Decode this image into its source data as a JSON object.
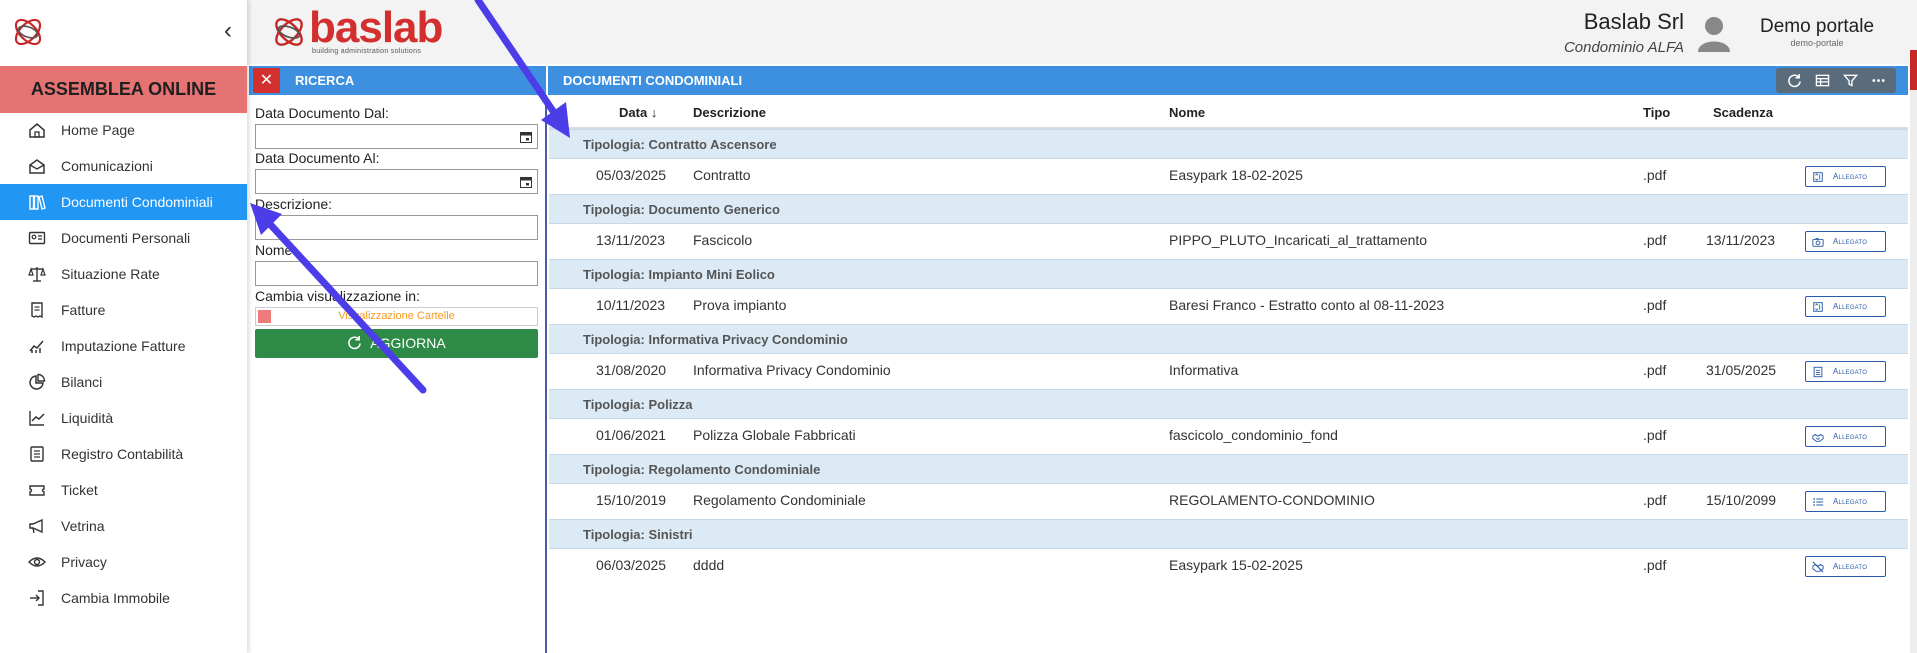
{
  "sidebar": {
    "banner": "ASSEMBLEA ONLINE",
    "collapse_icon": "chevron-left-icon",
    "items": [
      {
        "label": "Home Page",
        "icon": "home-icon"
      },
      {
        "label": "Comunicazioni",
        "icon": "envelope-open-icon"
      },
      {
        "label": "Documenti Condominiali",
        "icon": "books-icon",
        "active": true
      },
      {
        "label": "Documenti Personali",
        "icon": "id-card-icon"
      },
      {
        "label": "Situazione Rate",
        "icon": "scale-icon"
      },
      {
        "label": "Fatture",
        "icon": "invoice-icon"
      },
      {
        "label": "Imputazione Fatture",
        "icon": "trend-chart-icon"
      },
      {
        "label": "Bilanci",
        "icon": "pie-chart-icon"
      },
      {
        "label": "Liquidità",
        "icon": "line-chart-icon"
      },
      {
        "label": "Registro Contabilità",
        "icon": "ledger-icon"
      },
      {
        "label": "Ticket",
        "icon": "ticket-icon"
      },
      {
        "label": "Vetrina",
        "icon": "megaphone-icon"
      },
      {
        "label": "Privacy",
        "icon": "eye-icon"
      },
      {
        "label": "Cambia Immobile",
        "icon": "sign-in-icon"
      }
    ]
  },
  "header": {
    "brand_name": "baslab",
    "brand_tagline": "building administration solutions",
    "company_name": "Baslab Srl",
    "company_sub": "Condominio ALFA",
    "user_name": "Demo portale",
    "user_sub": "demo-portale"
  },
  "search_panel": {
    "title": "RICERCA",
    "close_symbol": "✕",
    "fields": {
      "date_from_label": "Data Documento Dal:",
      "date_to_label": "Data Documento Al:",
      "description_label": "Descrizione:",
      "name_label": "Nome:"
    },
    "view_label": "Cambia visualizzazione in:",
    "toggle_label": "Visualizzazione Cartelle",
    "refresh_label": "AGGIORNA"
  },
  "documents": {
    "title": "DOCUMENTI CONDOMINIALI",
    "toolbar_icons": [
      "refresh-icon",
      "table-icon",
      "filter-icon",
      "more-icon"
    ],
    "columns": {
      "data": "Data",
      "sort_arrow": "↓",
      "descrizione": "Descrizione",
      "nome": "Nome",
      "tipo": "Tipo",
      "scadenza": "Scadenza"
    },
    "attachment_label": "Allegato",
    "groups": [
      {
        "title": "Tipologia: Contratto Ascensore",
        "row": {
          "data": "05/03/2025",
          "descrizione": "Contratto",
          "nome": "Easypark 18-02-2025",
          "tipo": ".pdf",
          "scadenza": "",
          "icon": "elevator-icon"
        }
      },
      {
        "title": "Tipologia: Documento Generico",
        "row": {
          "data": "13/11/2023",
          "descrizione": "Fascicolo",
          "nome": "PIPPO_PLUTO_Incaricati_al_trattamento",
          "tipo": ".pdf",
          "scadenza": "13/11/2023",
          "icon": "camera-icon"
        }
      },
      {
        "title": "Tipologia: Impianto Mini Eolico",
        "row": {
          "data": "10/11/2023",
          "descrizione": "Prova impianto",
          "nome": "Baresi Franco - Estratto conto al 08-11-2023",
          "tipo": ".pdf",
          "scadenza": "",
          "icon": "elevator-icon"
        }
      },
      {
        "title": "Tipologia: Informativa Privacy Condominio",
        "row": {
          "data": "31/08/2020",
          "descrizione": "Informativa Privacy Condominio",
          "nome": "Informativa",
          "tipo": ".pdf",
          "scadenza": "31/05/2025",
          "icon": "document-icon"
        }
      },
      {
        "title": "Tipologia: Polizza",
        "row": {
          "data": "01/06/2021",
          "descrizione": "Polizza Globale Fabbricati",
          "nome": "fascicolo_condominio_fond",
          "tipo": ".pdf",
          "scadenza": "",
          "icon": "handshake-icon"
        }
      },
      {
        "title": "Tipologia: Regolamento Condominiale",
        "row": {
          "data": "15/10/2019",
          "descrizione": "Regolamento Condominiale",
          "nome": "REGOLAMENTO-CONDOMINIO",
          "tipo": ".pdf",
          "scadenza": "15/10/2099",
          "icon": "list-icon"
        }
      },
      {
        "title": "Tipologia: Sinistri",
        "row": {
          "data": "06/03/2025",
          "descrizione": "dddd",
          "nome": "Easypark 15-02-2025",
          "tipo": ".pdf",
          "scadenza": "",
          "icon": "handshake-slash-icon"
        }
      }
    ]
  },
  "colors": {
    "banner": "#e57373",
    "active_menu": "#2196f3",
    "panel_bar": "#3d8fe0",
    "group_row": "#dbeaf5",
    "refresh_button": "#2e8b47",
    "close_button": "#d32f2f",
    "brand_red": "#d32f2f",
    "arrow": "#4b3de8"
  }
}
